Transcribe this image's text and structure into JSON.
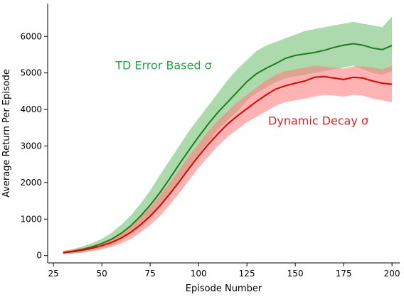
{
  "chart_data": {
    "type": "line",
    "xlabel": "Episode Number",
    "ylabel": "Average Return Per Episode",
    "xlim": [
      22,
      204
    ],
    "ylim": [
      -200,
      6900
    ],
    "xticks": [
      25,
      50,
      75,
      100,
      125,
      150,
      175,
      200
    ],
    "yticks": [
      0,
      1000,
      2000,
      3000,
      4000,
      5000,
      6000
    ],
    "grid": false,
    "legend": "none",
    "x": [
      30,
      35,
      40,
      45,
      50,
      55,
      60,
      65,
      70,
      75,
      80,
      85,
      90,
      95,
      100,
      105,
      110,
      115,
      120,
      125,
      130,
      135,
      140,
      145,
      150,
      155,
      160,
      165,
      170,
      175,
      180,
      185,
      190,
      195,
      200
    ],
    "series": [
      {
        "name": "TD Error Based σ",
        "color": "#1a7f1a",
        "band_color": "#77c177",
        "values": [
          80,
          120,
          170,
          240,
          330,
          450,
          610,
          820,
          1080,
          1380,
          1720,
          2100,
          2500,
          2880,
          3250,
          3600,
          3920,
          4200,
          4480,
          4760,
          4980,
          5130,
          5260,
          5400,
          5480,
          5520,
          5560,
          5620,
          5700,
          5760,
          5800,
          5760,
          5680,
          5640,
          5750
        ],
        "lower": [
          40,
          60,
          90,
          140,
          200,
          280,
          400,
          560,
          760,
          1000,
          1300,
          1680,
          2050,
          2400,
          2750,
          3100,
          3450,
          3700,
          3950,
          4250,
          4450,
          4600,
          4750,
          4850,
          4900,
          4950,
          5000,
          5050,
          5100,
          5150,
          5200,
          5100,
          5000,
          4950,
          5050
        ],
        "upper": [
          130,
          180,
          250,
          340,
          460,
          620,
          840,
          1100,
          1420,
          1780,
          2200,
          2600,
          3000,
          3400,
          3750,
          4100,
          4450,
          4800,
          5100,
          5350,
          5600,
          5750,
          5850,
          5950,
          6050,
          6150,
          6200,
          6250,
          6300,
          6350,
          6400,
          6350,
          6300,
          6250,
          6550
        ]
      },
      {
        "name": "Dynamic Decay σ",
        "color": "#e00000",
        "band_color": "#ff8080",
        "values": [
          80,
          110,
          150,
          200,
          270,
          360,
          480,
          640,
          840,
          1080,
          1360,
          1680,
          2020,
          2380,
          2720,
          3040,
          3330,
          3600,
          3820,
          4020,
          4220,
          4400,
          4560,
          4650,
          4720,
          4780,
          4880,
          4900,
          4860,
          4820,
          4880,
          4860,
          4780,
          4720,
          4690
        ],
        "lower": [
          40,
          60,
          80,
          120,
          170,
          240,
          330,
          460,
          630,
          830,
          1080,
          1380,
          1700,
          2050,
          2400,
          2700,
          3000,
          3250,
          3450,
          3650,
          3800,
          3950,
          4100,
          4200,
          4250,
          4300,
          4350,
          4400,
          4380,
          4350,
          4400,
          4380,
          4300,
          4250,
          4200
        ],
        "upper": [
          130,
          160,
          210,
          270,
          360,
          470,
          620,
          820,
          1050,
          1320,
          1640,
          1980,
          2350,
          2720,
          3050,
          3400,
          3700,
          3950,
          4200,
          4400,
          4600,
          4800,
          4950,
          5050,
          5100,
          5150,
          5200,
          5180,
          5150,
          5120,
          5180,
          5180,
          5150,
          5100,
          5200
        ]
      }
    ],
    "annotations": [
      {
        "text": "TD Error Based σ",
        "x": 57,
        "y": 5100,
        "color": "#22aa44"
      },
      {
        "text": "Dynamic Decay σ",
        "x": 136,
        "y": 3580,
        "color": "#dd2222"
      }
    ]
  }
}
